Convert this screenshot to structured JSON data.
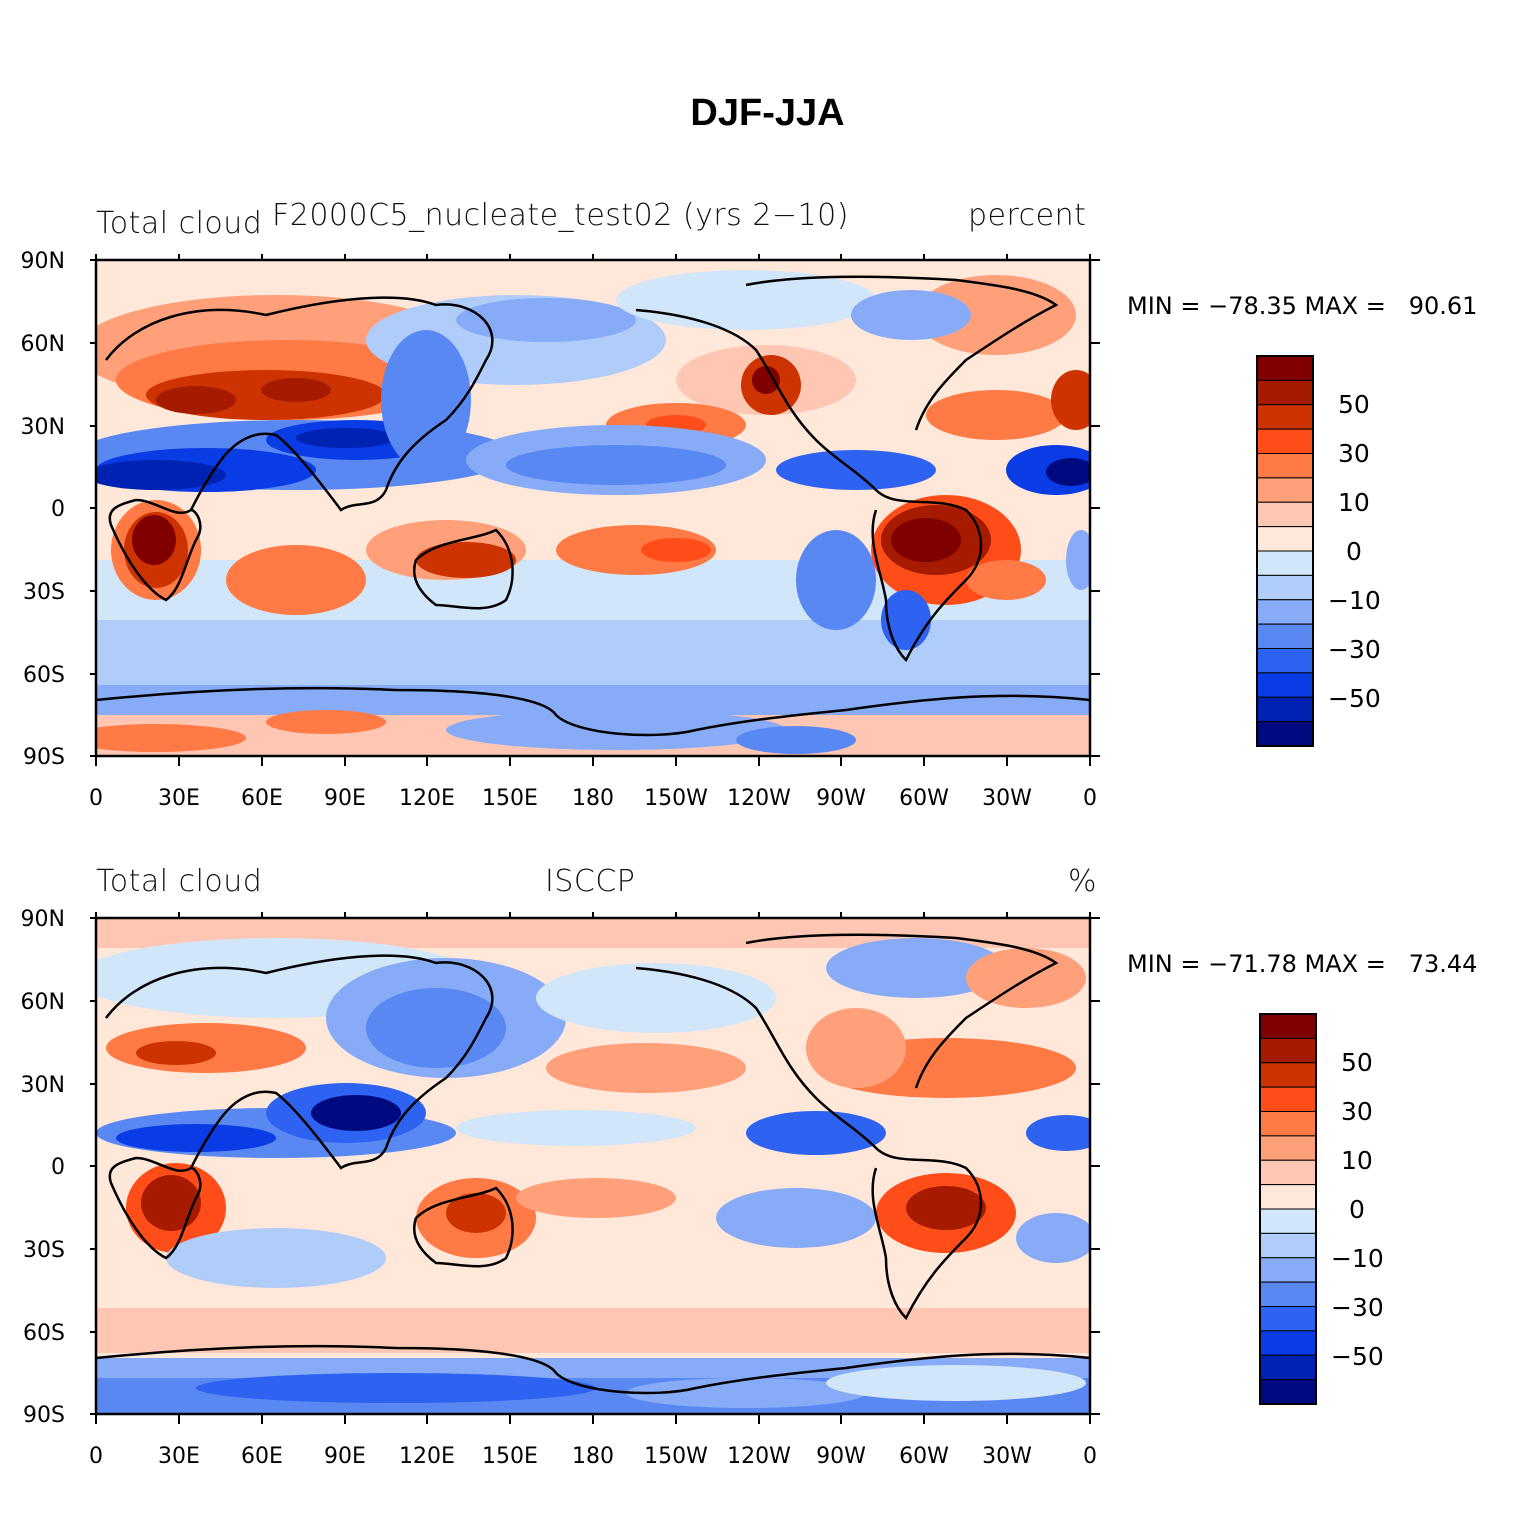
{
  "title": "DJF-JJA",
  "panels": [
    {
      "id": "model",
      "left_title": "Total cloud",
      "center_title": "F2000C5_nucleate_test02 (yrs 2−10)",
      "right_title": "percent",
      "stats": "MIN = −78.35 MAX =   90.61"
    },
    {
      "id": "obs",
      "left_title": "Total cloud",
      "center_title": "ISCCP",
      "right_title": "%",
      "stats": "MIN = −71.78 MAX =   73.44"
    }
  ],
  "lat_labels": [
    "90N",
    "60N",
    "30N",
    "0",
    "30S",
    "60S",
    "90S"
  ],
  "lon_labels": [
    "0",
    "30E",
    "60E",
    "90E",
    "120E",
    "150E",
    "180",
    "150W",
    "120W",
    "90W",
    "60W",
    "30W",
    "0"
  ],
  "colorbar": {
    "labels": [
      "50",
      "30",
      "10",
      "0",
      "−10",
      "−30",
      "−50"
    ],
    "colors": [
      "#800000",
      "#a61a00",
      "#cc3300",
      "#ff4d1a",
      "#ff7a45",
      "#ffa07a",
      "#ffc6b3",
      "#ffe8d9",
      "#d2e6fa",
      "#b0cdfa",
      "#87abf7",
      "#5a88f2",
      "#2e62f0",
      "#0a3ce6",
      "#0022b3",
      "#000a80"
    ]
  }
}
